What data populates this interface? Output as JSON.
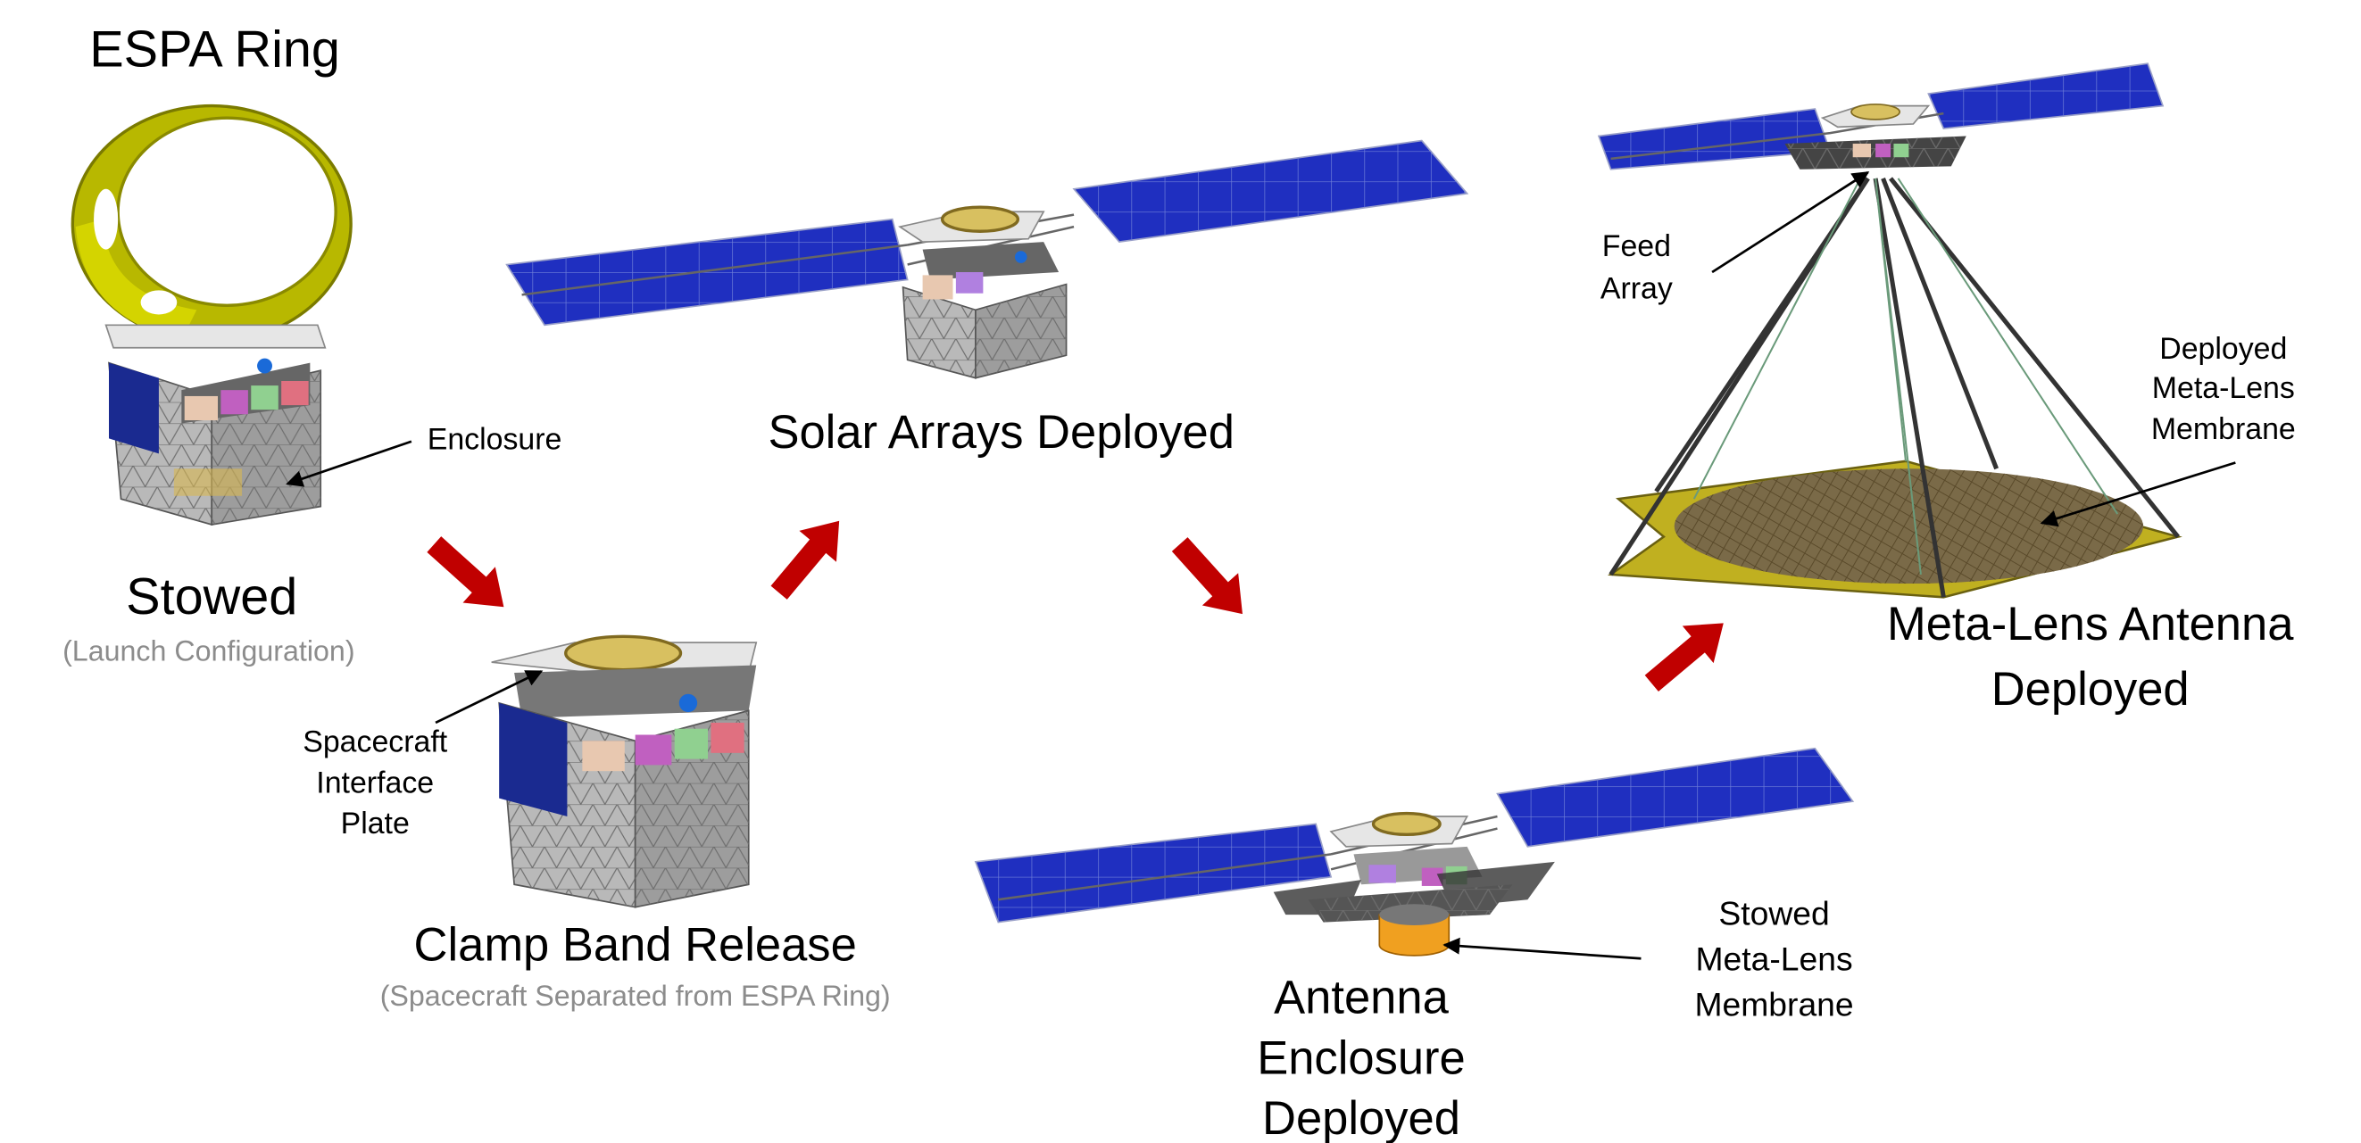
{
  "espa_ring": "ESPA Ring",
  "stages": [
    {
      "title": [
        "Stowed"
      ],
      "subtitle": "(Launch Configuration)"
    },
    {
      "title": [
        "Clamp Band Release"
      ],
      "subtitle": "(Spacecraft Separated from ESPA Ring)"
    },
    {
      "title": [
        "Solar Arrays Deployed"
      ]
    },
    {
      "title": [
        "Antenna",
        "Enclosure",
        "Deployed"
      ]
    },
    {
      "title": [
        "Meta-Lens Antenna",
        "Deployed"
      ]
    }
  ],
  "callouts": [
    {
      "lines": [
        "Enclosure"
      ]
    },
    {
      "lines": [
        "Spacecraft",
        "Interface",
        "Plate"
      ]
    },
    {
      "lines": [
        "Feed",
        "Array"
      ]
    },
    {
      "lines": [
        "Deployed",
        "Meta-Lens",
        "Membrane"
      ]
    },
    {
      "lines": [
        "Stowed",
        "Meta-Lens",
        "Membrane"
      ]
    }
  ]
}
